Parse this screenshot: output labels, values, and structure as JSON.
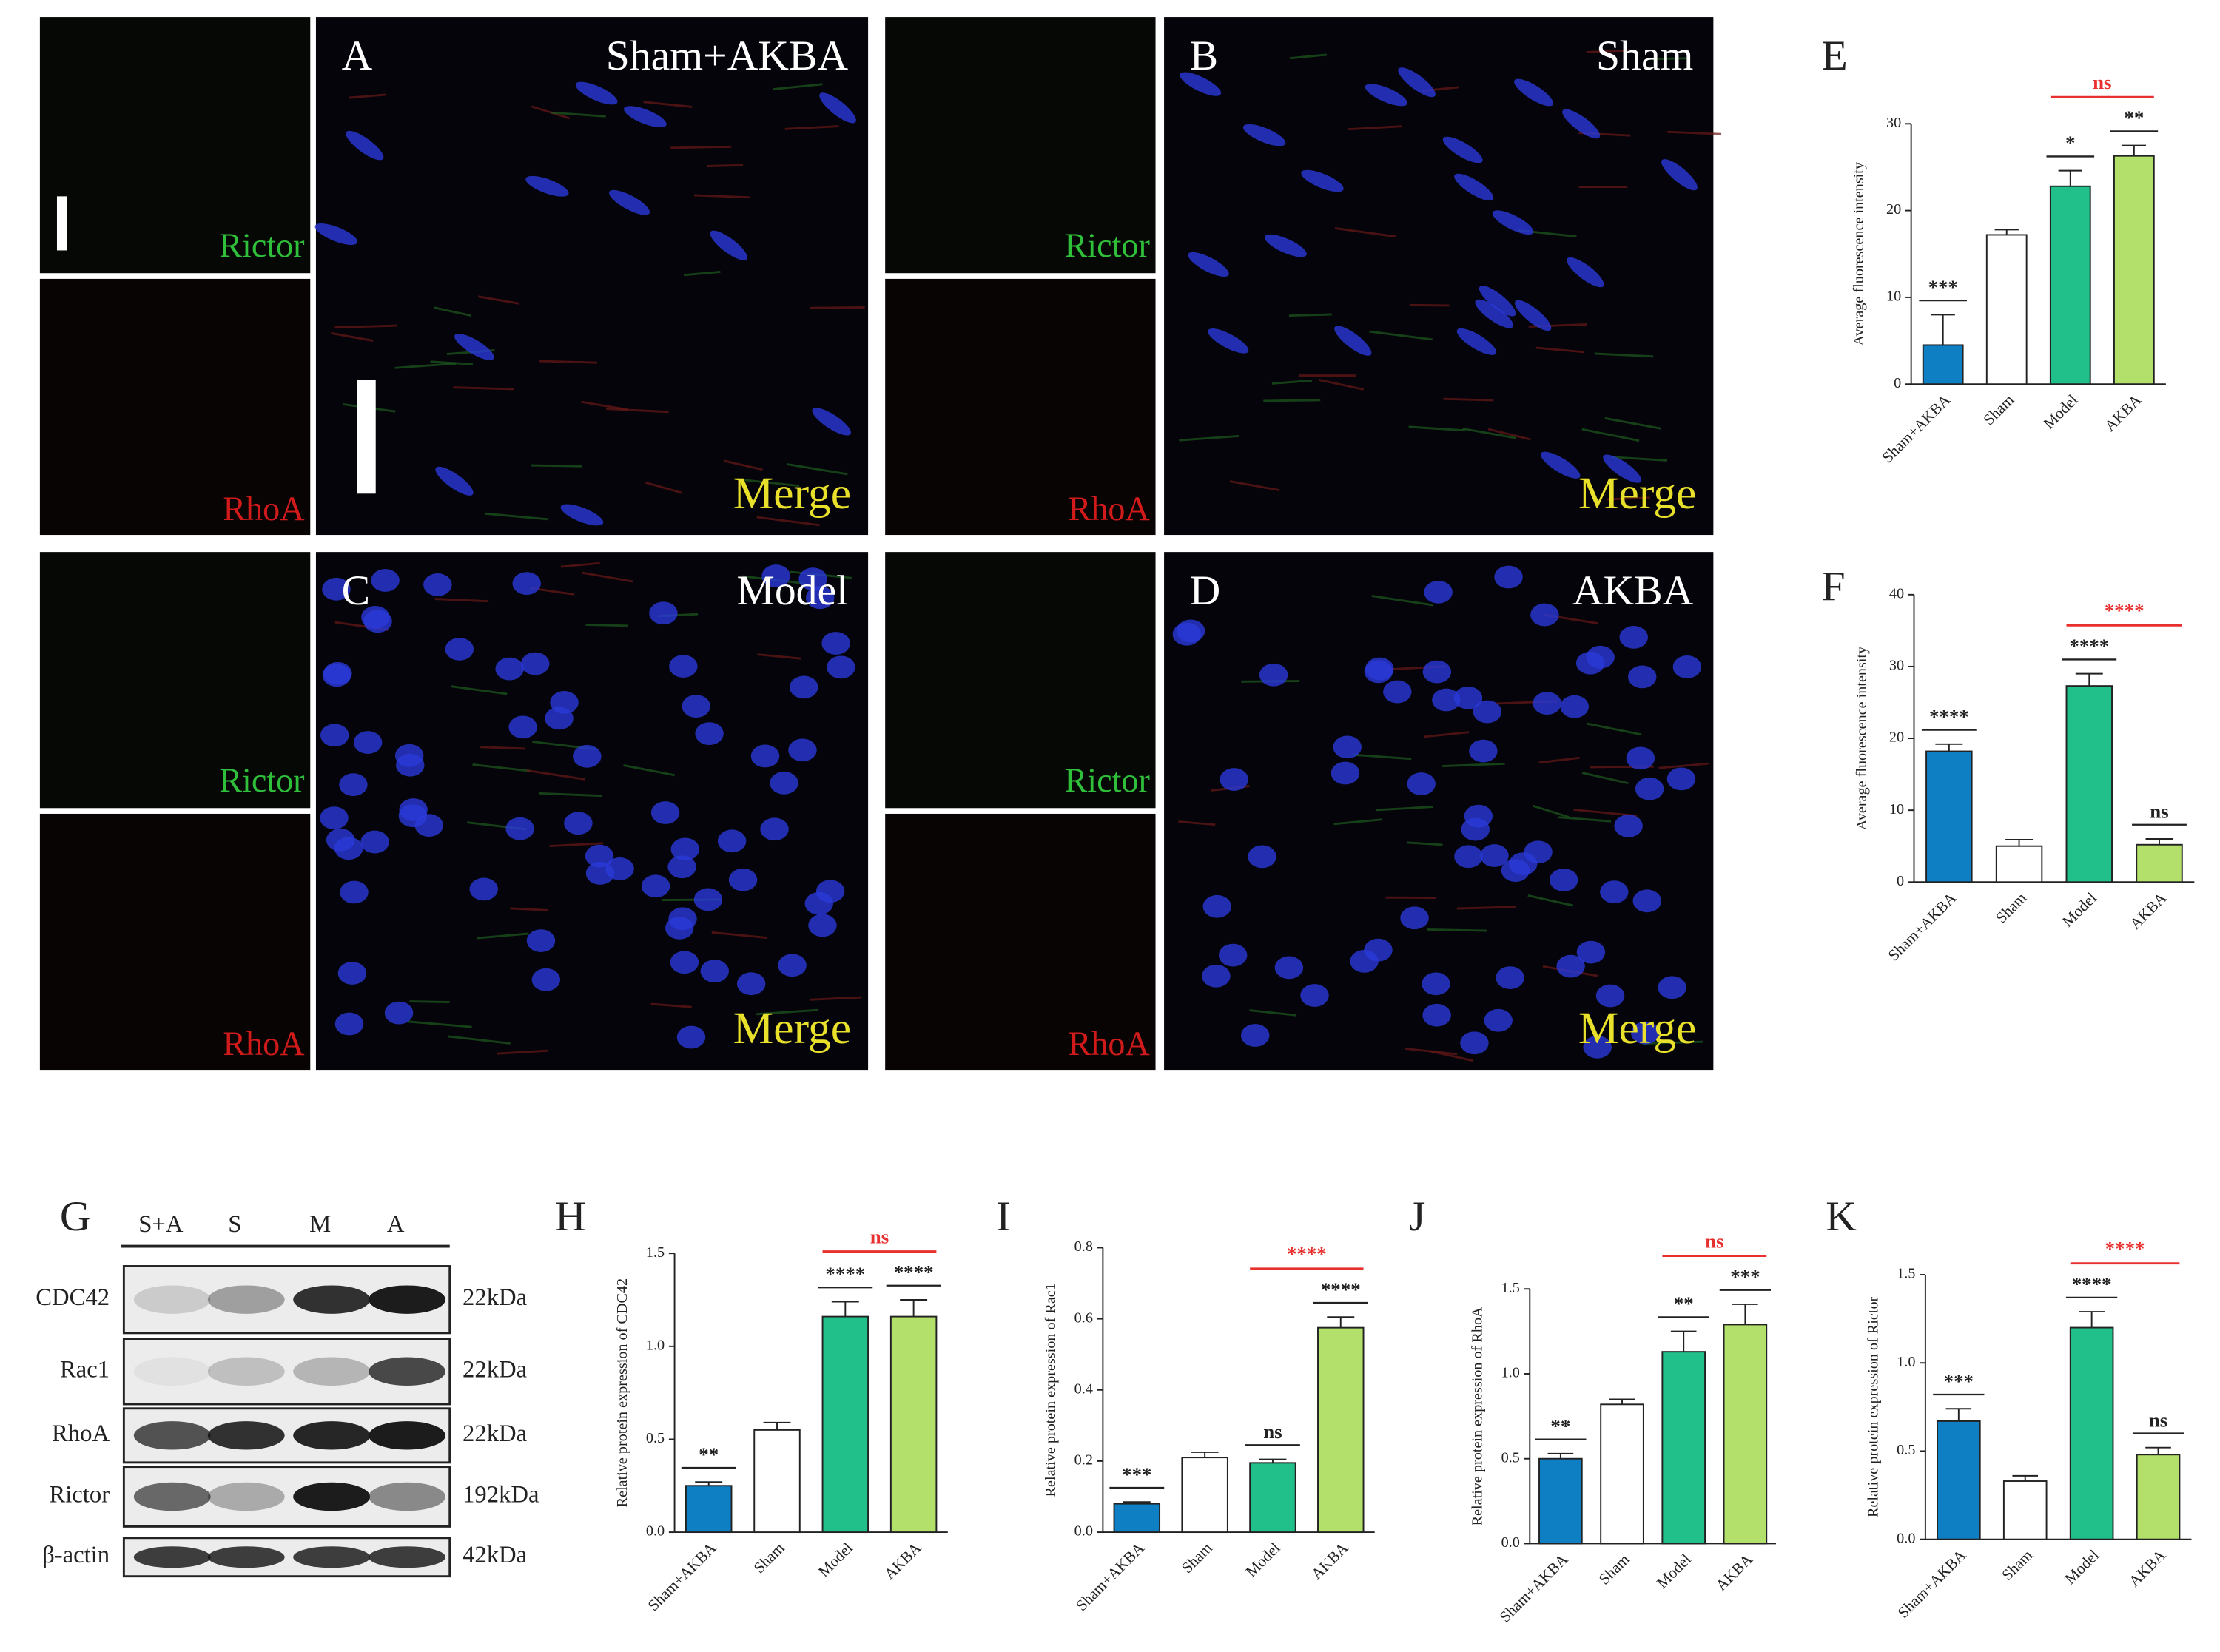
{
  "micrographs": [
    {
      "letter": "A",
      "group": "Sham+AKBA",
      "channels": [
        "Rictor",
        "RhoA"
      ],
      "merge": "Merge"
    },
    {
      "letter": "B",
      "group": "Sham",
      "channels": [
        "Rictor",
        "RhoA"
      ],
      "merge": "Merge"
    },
    {
      "letter": "C",
      "group": "Model",
      "channels": [
        "Rictor",
        "RhoA"
      ],
      "merge": "Merge"
    },
    {
      "letter": "D",
      "group": "AKBA",
      "channels": [
        "Rictor",
        "RhoA"
      ],
      "merge": "Merge"
    }
  ],
  "blot": {
    "panel": "G",
    "lanes": [
      "S+A",
      "S",
      "M",
      "A"
    ],
    "proteins": [
      "CDC42",
      "Rac1",
      "RhoA",
      "Rictor",
      "β-actin"
    ],
    "sizes": [
      "22kDa",
      "22kDa",
      "22kDa",
      "192kDa",
      "42kDa"
    ]
  },
  "chart_data": [
    {
      "type": "bar",
      "panel": "E",
      "ylabel": "Average fluorescence intensity",
      "categories": [
        "Sham+AKBA",
        "Sham",
        "Model",
        "AKBA"
      ],
      "values": [
        4.5,
        17.2,
        22.8,
        26.3
      ],
      "errors": [
        3.5,
        0.6,
        1.8,
        1.2
      ],
      "colors": [
        "#0f7fc4",
        "#ffffff",
        "#21bf8a",
        "#b3e06a"
      ],
      "ylim": [
        0,
        30
      ],
      "yticks": [
        0,
        10,
        20,
        30
      ],
      "annotations": [
        "***",
        null,
        "*",
        "**"
      ],
      "comparison": {
        "label": "ns",
        "between": [
          "Model",
          "AKBA"
        ],
        "color": "#e8312f"
      }
    },
    {
      "type": "bar",
      "panel": "F",
      "ylabel": "Average fluorescence intensity",
      "categories": [
        "Sham+AKBA",
        "Sham",
        "Model",
        "AKBA"
      ],
      "values": [
        18.2,
        5.0,
        27.3,
        5.2
      ],
      "errors": [
        1.0,
        0.9,
        1.7,
        0.8
      ],
      "colors": [
        "#0f7fc4",
        "#ffffff",
        "#21bf8a",
        "#b3e06a"
      ],
      "ylim": [
        0,
        40
      ],
      "yticks": [
        0,
        10,
        20,
        30,
        40
      ],
      "annotations": [
        "****",
        null,
        "****",
        "ns"
      ],
      "comparison": {
        "label": "****",
        "between": [
          "Model",
          "AKBA"
        ],
        "color": "#e8312f"
      }
    },
    {
      "type": "bar",
      "panel": "H",
      "ylabel": "Relative protein expression of CDC42",
      "categories": [
        "Sham+AKBA",
        "Sham",
        "Model",
        "AKBA"
      ],
      "values": [
        0.25,
        0.55,
        1.16,
        1.16
      ],
      "errors": [
        0.02,
        0.04,
        0.08,
        0.09
      ],
      "colors": [
        "#0f7fc4",
        "#ffffff",
        "#21bf8a",
        "#b3e06a"
      ],
      "ylim": [
        0,
        1.5
      ],
      "yticks": [
        {
          "value": 0,
          "label": "0.0"
        },
        0.5,
        {
          "value": 1,
          "label": "1.0"
        },
        1.5
      ],
      "annotations": [
        "**",
        null,
        "****",
        "****"
      ],
      "comparison": {
        "label": "ns",
        "between": [
          "Model",
          "AKBA"
        ],
        "color": "#e8312f"
      }
    },
    {
      "type": "bar",
      "panel": "I",
      "ylabel": "Relative protein expression of Rac1",
      "categories": [
        "Sham+AKBA",
        "Sham",
        "Model",
        "AKBA"
      ],
      "values": [
        0.08,
        0.21,
        0.195,
        0.575
      ],
      "errors": [
        0.005,
        0.015,
        0.01,
        0.03
      ],
      "colors": [
        "#0f7fc4",
        "#ffffff",
        "#21bf8a",
        "#b3e06a"
      ],
      "ylim": [
        0,
        0.8
      ],
      "yticks": [
        {
          "value": 0,
          "label": "0.0"
        },
        0.2,
        0.4,
        0.6,
        0.8
      ],
      "annotations": [
        "***",
        null,
        "ns",
        "****"
      ],
      "comparison": {
        "label": "****",
        "between": [
          "Model",
          "AKBA"
        ],
        "color": "#e8312f"
      }
    },
    {
      "type": "bar",
      "panel": "J",
      "ylabel": "Relative protein expression of RhoA",
      "categories": [
        "Sham+AKBA",
        "Sham",
        "Model",
        "AKBA"
      ],
      "values": [
        0.5,
        0.82,
        1.13,
        1.29
      ],
      "errors": [
        0.03,
        0.03,
        0.12,
        0.12
      ],
      "colors": [
        "#0f7fc4",
        "#ffffff",
        "#21bf8a",
        "#b3e06a"
      ],
      "ylim": [
        0,
        1.5
      ],
      "yticks": [
        {
          "value": 0,
          "label": "0.0"
        },
        0.5,
        {
          "value": 1,
          "label": "1.0"
        },
        1.5
      ],
      "annotations": [
        "**",
        null,
        "**",
        "***"
      ],
      "comparison": {
        "label": "ns",
        "between": [
          "Model",
          "AKBA"
        ],
        "color": "#e8312f"
      }
    },
    {
      "type": "bar",
      "panel": "K",
      "ylabel": "Relative protein expression of Rictor",
      "categories": [
        "Sham+AKBA",
        "Sham",
        "Model",
        "AKBA"
      ],
      "values": [
        0.67,
        0.33,
        1.2,
        0.48
      ],
      "errors": [
        0.07,
        0.03,
        0.09,
        0.04
      ],
      "colors": [
        "#0f7fc4",
        "#ffffff",
        "#21bf8a",
        "#b3e06a"
      ],
      "ylim": [
        0,
        1.5
      ],
      "yticks": [
        {
          "value": 0,
          "label": "0.0"
        },
        0.5,
        {
          "value": 1,
          "label": "1.0"
        },
        1.5
      ],
      "annotations": [
        "***",
        null,
        "****",
        "ns"
      ],
      "comparison": {
        "label": "****",
        "between": [
          "Model",
          "AKBA"
        ],
        "color": "#e8312f"
      }
    }
  ]
}
